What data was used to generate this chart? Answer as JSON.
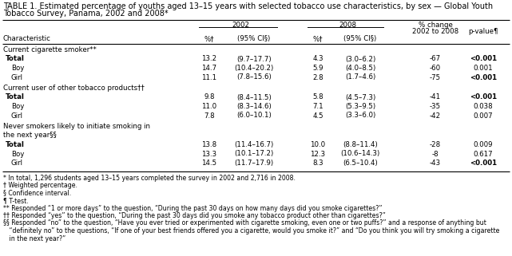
{
  "title_line1": "TABLE 1. Estimated percentage of youths aged 13–15 years with selected tobacco use characteristics, by sex — Global Youth",
  "title_line2": "Tobacco Survey, Panama, 2002 and 2008*",
  "col_headers": {
    "year2002": "2002",
    "year2008": "2008",
    "pct_change": "% change\n2002 to 2008",
    "pvalue": "p-value¶"
  },
  "sub_headers": {
    "pct2002": "%†",
    "ci2002": "(95% CI§)",
    "pct2008": "%†",
    "ci2008": "(95% CI§)"
  },
  "char_label": "Characteristic",
  "sections": [
    {
      "header": "Current cigarette smoker**",
      "header2": null,
      "rows": [
        {
          "label": "Total",
          "bold": true,
          "pct2002": "13.2",
          "ci2002": "(9.7–17.7)",
          "pct2008": "4.3",
          "ci2008": "(3.0–6.2)",
          "change": "-67",
          "pvalue": "<0.001",
          "pv_bold": true
        },
        {
          "label": "Boy",
          "bold": false,
          "pct2002": "14.7",
          "ci2002": "(10.4–20.2)",
          "pct2008": "5.9",
          "ci2008": "(4.0–8.5)",
          "change": "-60",
          "pvalue": "0.001",
          "pv_bold": false
        },
        {
          "label": "Girl",
          "bold": false,
          "pct2002": "11.1",
          "ci2002": "(7.8–15.6)",
          "pct2008": "2.8",
          "ci2008": "(1.7–4.6)",
          "change": "-75",
          "pvalue": "<0.001",
          "pv_bold": true
        }
      ]
    },
    {
      "header": "Current user of other tobacco products††",
      "header2": null,
      "rows": [
        {
          "label": "Total",
          "bold": true,
          "pct2002": "9.8",
          "ci2002": "(8.4–11.5)",
          "pct2008": "5.8",
          "ci2008": "(4.5–7.3)",
          "change": "-41",
          "pvalue": "<0.001",
          "pv_bold": true
        },
        {
          "label": "Boy",
          "bold": false,
          "pct2002": "11.0",
          "ci2002": "(8.3–14.6)",
          "pct2008": "7.1",
          "ci2008": "(5.3–9.5)",
          "change": "-35",
          "pvalue": "0.038",
          "pv_bold": false
        },
        {
          "label": "Girl",
          "bold": false,
          "pct2002": "7.8",
          "ci2002": "(6.0–10.1)",
          "pct2008": "4.5",
          "ci2008": "(3.3–6.0)",
          "change": "-42",
          "pvalue": "0.007",
          "pv_bold": false
        }
      ]
    },
    {
      "header": "Never smokers likely to initiate smoking in",
      "header2": "the next year§§",
      "rows": [
        {
          "label": "Total",
          "bold": true,
          "pct2002": "13.8",
          "ci2002": "(11.4–16.7)",
          "pct2008": "10.0",
          "ci2008": "(8.8–11.4)",
          "change": "-28",
          "pvalue": "0.009",
          "pv_bold": false
        },
        {
          "label": "Boy",
          "bold": false,
          "pct2002": "13.3",
          "ci2002": "(10.1–17.2)",
          "pct2008": "12.3",
          "ci2008": "(10.6–14.3)",
          "change": "-8",
          "pvalue": "0.617",
          "pv_bold": false
        },
        {
          "label": "Girl",
          "bold": false,
          "pct2002": "14.5",
          "ci2002": "(11.7–17.9)",
          "pct2008": "8.3",
          "ci2008": "(6.5–10.4)",
          "change": "-43",
          "pvalue": "<0.001",
          "pv_bold": true
        }
      ]
    }
  ],
  "footnotes": [
    "* In total, 1,296 students aged 13–15 years completed the survey in 2002 and 2,716 in 2008.",
    "† Weighted percentage.",
    "§ Confidence interval.",
    "¶ T-test.",
    "** Responded “1 or more days” to the question, “During the past 30 days on how many days did you smoke cigarettes?”",
    "†† Responded “yes” to the question, “During the past 30 days did you smoke any tobacco product other than cigarettes?”",
    "§§ Responded “no” to the question, “Have you ever tried or experimented with cigarette smoking, even one or two puffs?” and a response of anything but",
    "   “definitely no” to the questions, “If one of your best friends offered you a cigarette, would you smoke it?” and “Do you think you will try smoking a cigarette",
    "   in the next year?”"
  ],
  "bg_color": "#ffffff",
  "text_color": "#000000",
  "font_size": 6.2,
  "title_font_size": 7.0,
  "footnote_font_size": 5.6
}
